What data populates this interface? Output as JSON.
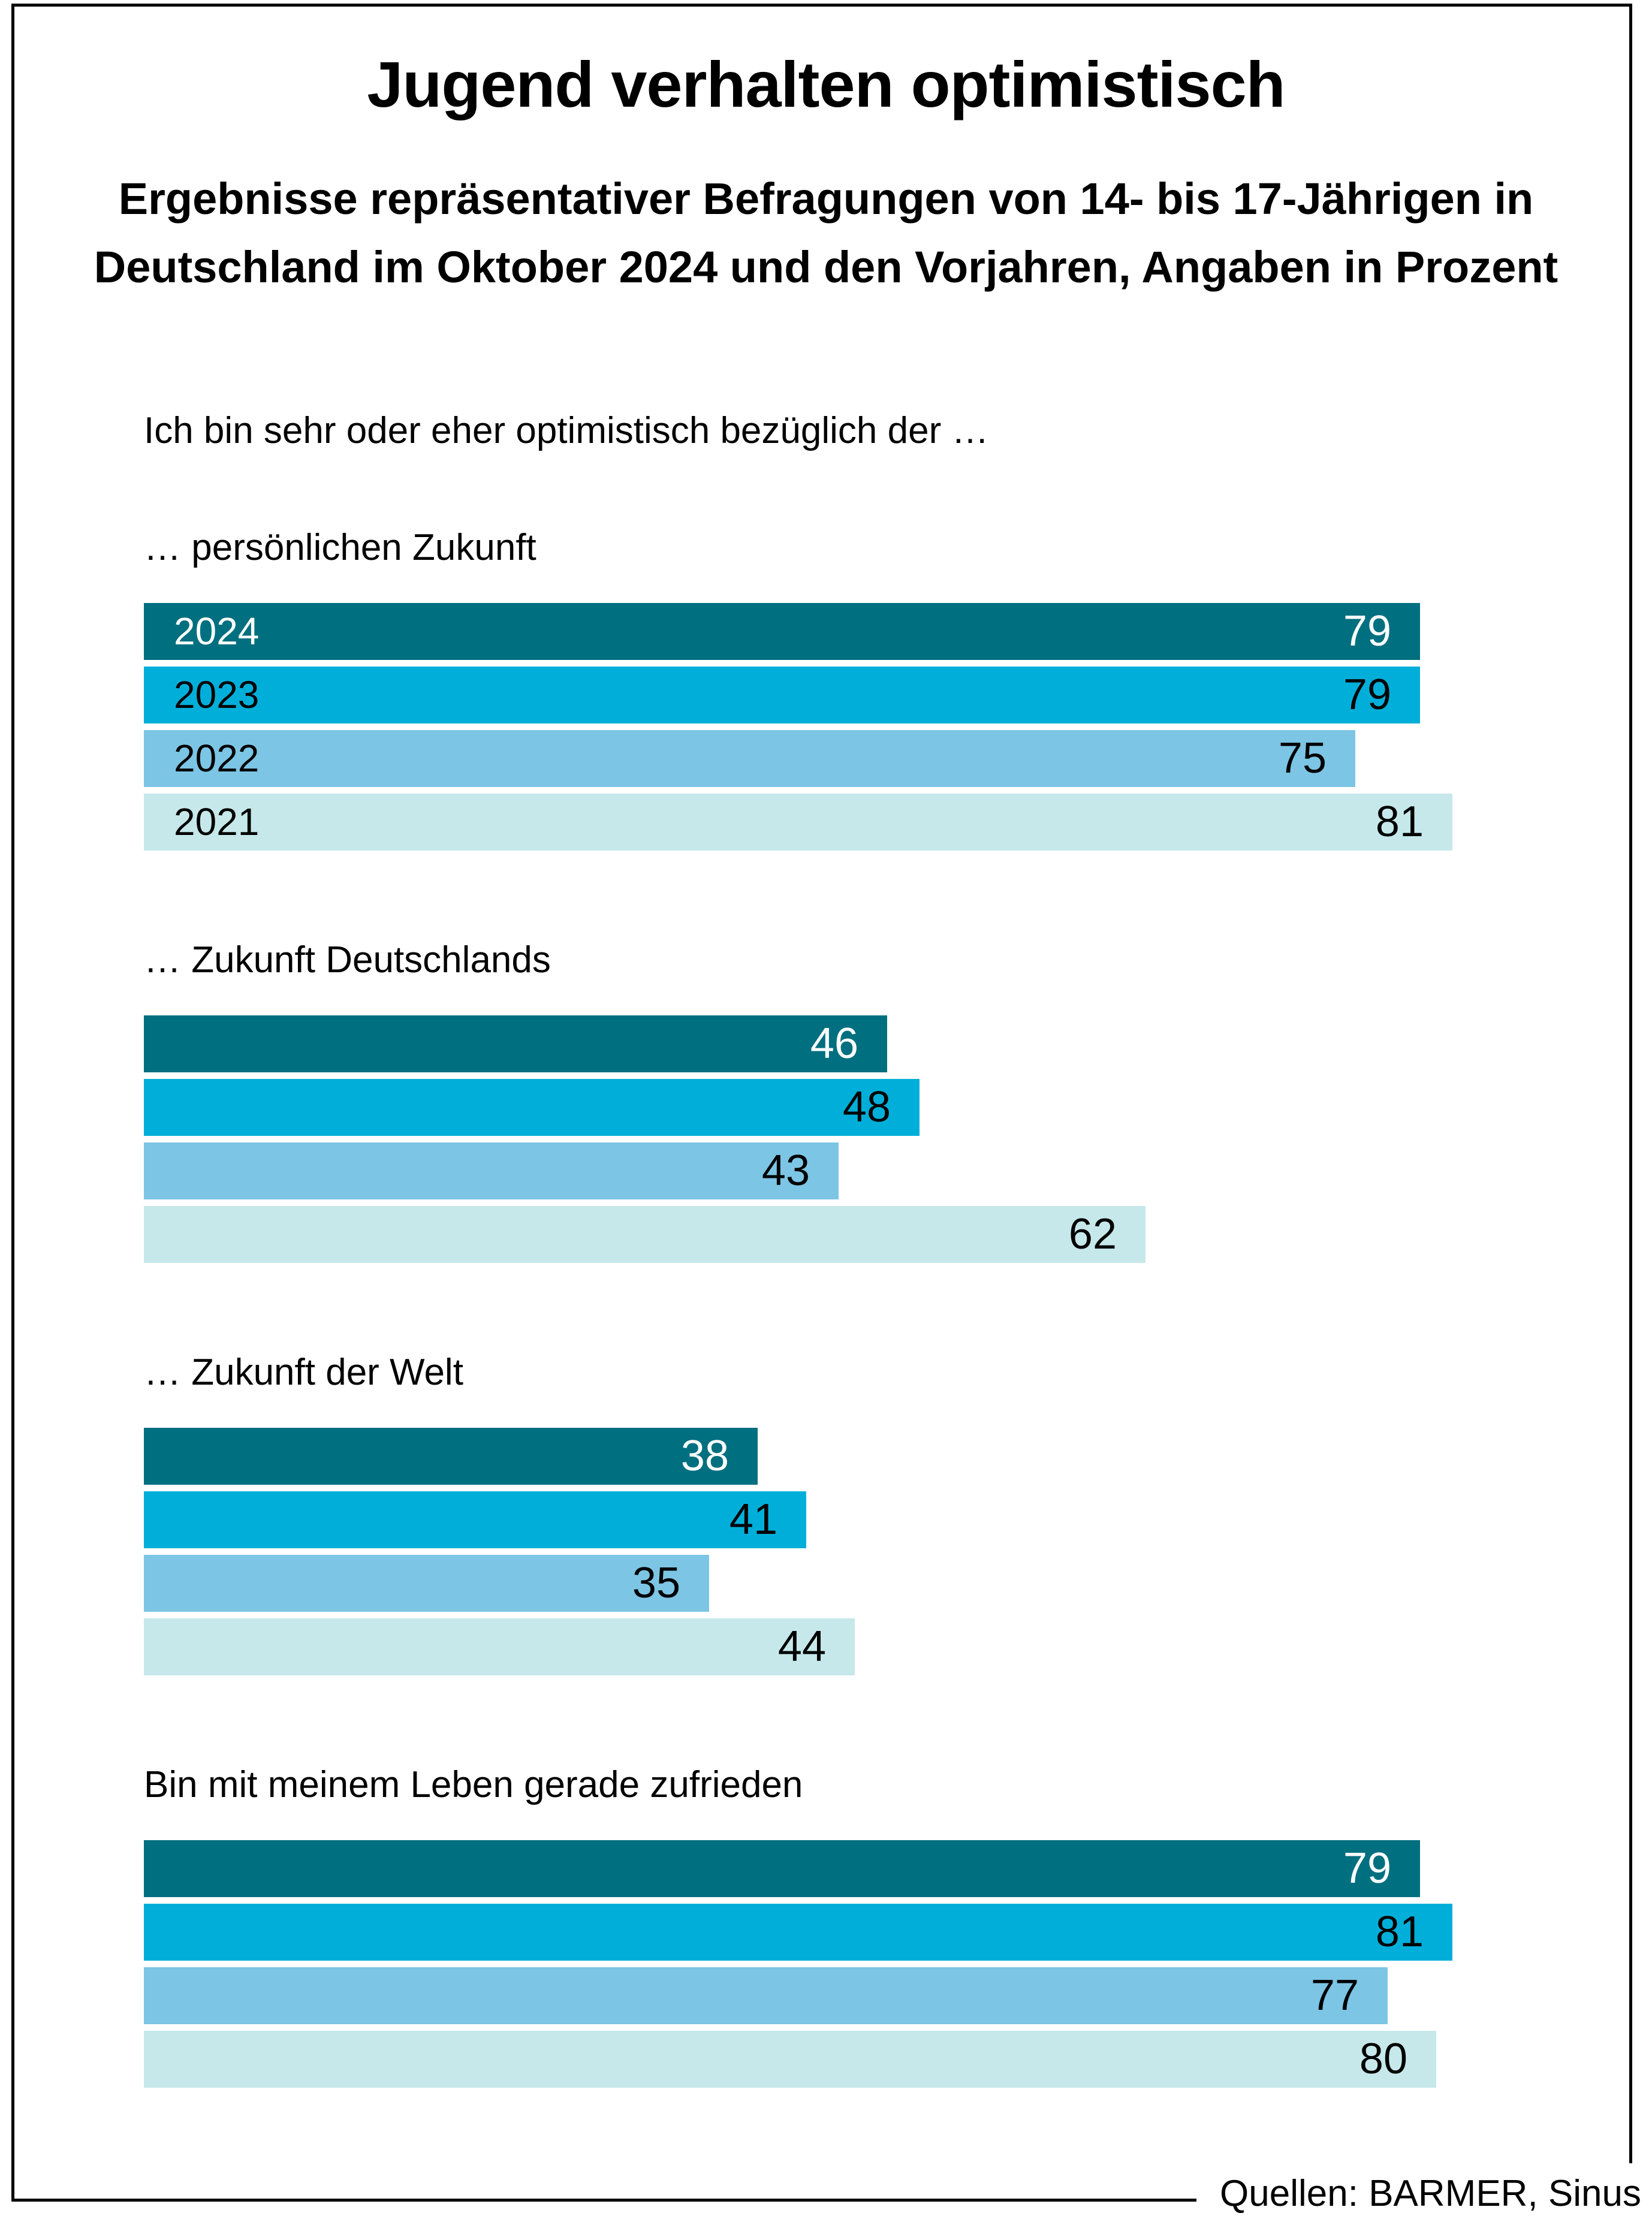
{
  "header": {
    "title": "Jugend verhalten optimistisch",
    "subtitle_line1": "Ergebnisse repräsentativer Befragungen von 14- bis 17-Jährigen in",
    "subtitle_line2": "Deutschland im Oktober 2024 und den Vorjahren, Angaben in Prozent"
  },
  "intro": "Ich bin sehr oder eher optimistisch bezüglich der …",
  "source": "Quellen: BARMER, Sinus",
  "colors": {
    "2024": "#006f7f",
    "2023": "#00afd9",
    "2022": "#7cc5e4",
    "2021": "#c6e8ea"
  },
  "chart_data": {
    "type": "bar",
    "orientation": "horizontal",
    "title": "Jugend verhalten optimistisch",
    "subtitle": "Ergebnisse repräsentativer Befragungen von 14- bis 17-Jährigen in Deutschland im Oktober 2024 und den Vorjahren, Angaben in Prozent",
    "xlabel": "",
    "ylabel": "",
    "unit": "%",
    "xlim": [
      0,
      100
    ],
    "grid": false,
    "legend": "inline (year labels inside first group's bars)",
    "years": [
      "2024",
      "2023",
      "2022",
      "2021"
    ],
    "categories": [
      "… persönlichen Zukunft",
      "… Zukunft Deutschlands",
      "… Zukunft der Welt",
      "Bin mit meinem Leben gerade zufrieden"
    ],
    "series": [
      {
        "name": "2024",
        "values": [
          79,
          46,
          38,
          79
        ]
      },
      {
        "name": "2023",
        "values": [
          79,
          48,
          41,
          81
        ]
      },
      {
        "name": "2022",
        "values": [
          75,
          43,
          35,
          77
        ]
      },
      {
        "name": "2021",
        "values": [
          81,
          62,
          44,
          80
        ]
      }
    ],
    "source": "Quellen: BARMER, Sinus"
  }
}
